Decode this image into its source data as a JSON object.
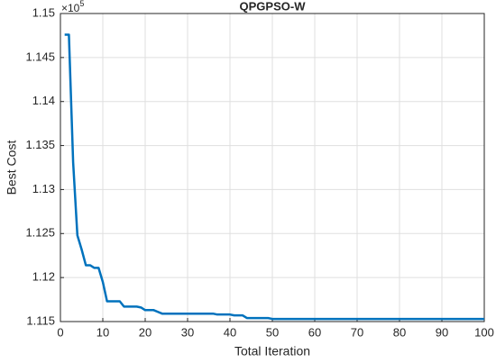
{
  "chart_data": {
    "type": "line",
    "title": "QPGPSO-W",
    "xlabel": "Total Iteration",
    "ylabel": "Best Cost",
    "y_exponent_base": "×10",
    "y_exponent_power": "5",
    "x": [
      1,
      2,
      3,
      4,
      5,
      6,
      7,
      8,
      9,
      10,
      11,
      12,
      13,
      14,
      15,
      16,
      17,
      18,
      19,
      20,
      21,
      22,
      23,
      24,
      25,
      26,
      27,
      28,
      29,
      30,
      31,
      32,
      33,
      34,
      35,
      36,
      37,
      38,
      39,
      40,
      41,
      42,
      43,
      44,
      45,
      46,
      47,
      48,
      49,
      50,
      51,
      52,
      53,
      54,
      55,
      56,
      57,
      58,
      59,
      60,
      61,
      62,
      63,
      64,
      65,
      66,
      67,
      68,
      69,
      70,
      71,
      72,
      73,
      74,
      75,
      76,
      77,
      78,
      79,
      80,
      81,
      82,
      83,
      84,
      85,
      86,
      87,
      88,
      89,
      90,
      91,
      92,
      93,
      94,
      95,
      96,
      97,
      98,
      99,
      100
    ],
    "series": [
      {
        "name": "Best Cost",
        "color": "#0072bd",
        "values": [
          1.1476,
          1.1476,
          1.1331,
          1.1248,
          1.1232,
          1.1214,
          1.1214,
          1.1211,
          1.1211,
          1.1195,
          1.1173,
          1.1173,
          1.1173,
          1.1173,
          1.1167,
          1.1167,
          1.1167,
          1.1167,
          1.1166,
          1.1163,
          1.1163,
          1.1163,
          1.1161,
          1.1159,
          1.1159,
          1.1159,
          1.1159,
          1.1159,
          1.1159,
          1.1159,
          1.1159,
          1.1159,
          1.1159,
          1.1159,
          1.1159,
          1.1159,
          1.1158,
          1.1158,
          1.1158,
          1.1158,
          1.1157,
          1.1157,
          1.1157,
          1.1154,
          1.1154,
          1.1154,
          1.1154,
          1.1154,
          1.1154,
          1.1153,
          1.1153,
          1.1153,
          1.1153,
          1.1153,
          1.1153,
          1.1153,
          1.1153,
          1.1153,
          1.1153,
          1.1153,
          1.1153,
          1.1153,
          1.1153,
          1.1153,
          1.1153,
          1.1153,
          1.1153,
          1.1153,
          1.1153,
          1.1153,
          1.1153,
          1.1153,
          1.1153,
          1.1153,
          1.1153,
          1.1153,
          1.1153,
          1.1153,
          1.1153,
          1.1153,
          1.1153,
          1.1153,
          1.1153,
          1.1153,
          1.1153,
          1.1153,
          1.1153,
          1.1153,
          1.1153,
          1.1153,
          1.1153,
          1.1153,
          1.1153,
          1.1153,
          1.1153,
          1.1153,
          1.1153,
          1.1153,
          1.1153,
          1.1153
        ]
      }
    ],
    "xlim": [
      0,
      100
    ],
    "xticks": [
      0,
      10,
      20,
      30,
      40,
      50,
      60,
      70,
      80,
      90,
      100
    ],
    "ylim": [
      1.115,
      1.15
    ],
    "yticks": [
      1.115,
      1.12,
      1.125,
      1.13,
      1.135,
      1.14,
      1.145,
      1.15
    ],
    "grid": true
  }
}
